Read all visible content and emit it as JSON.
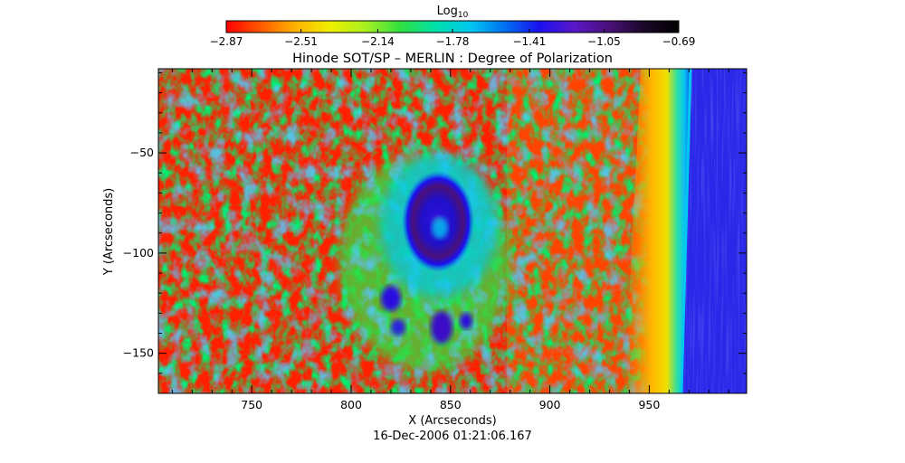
{
  "chart_data": {
    "type": "heatmap",
    "title": "Hinode SOT/SP – MERLIN : Degree of Polarization",
    "xlabel": "X (Arcseconds)",
    "ylabel": "Y (Arcseconds)",
    "subtitle": "16-Dec-2006 01:21:06.167",
    "xlim": [
      703,
      999
    ],
    "ylim": [
      -170,
      -8
    ],
    "x_ticks": [
      750,
      800,
      850,
      900,
      950
    ],
    "y_ticks": [
      -150,
      -100,
      -50
    ],
    "colorbar": {
      "label_base": "Log",
      "label_sub": "10",
      "range": [
        -2.87,
        -0.69
      ],
      "ticks": [
        -2.87,
        -2.51,
        -2.14,
        -1.78,
        -1.41,
        -1.05,
        -0.69
      ],
      "colors": [
        "#ff0000",
        "#ff5a00",
        "#ffb400",
        "#f0f000",
        "#a8f020",
        "#30e040",
        "#00e0a8",
        "#00c8f0",
        "#0070f0",
        "#1a10f0",
        "#5a18c8",
        "#4a1078",
        "#1a0828",
        "#000000"
      ]
    },
    "features": {
      "sunspot_center": [
        845,
        -85
      ],
      "limb_x_at_top": 966,
      "limb_x_at_bottom": 958,
      "background_log": -2.85,
      "umbra_log": -1.0,
      "offlimb_log": -1.15
    }
  }
}
